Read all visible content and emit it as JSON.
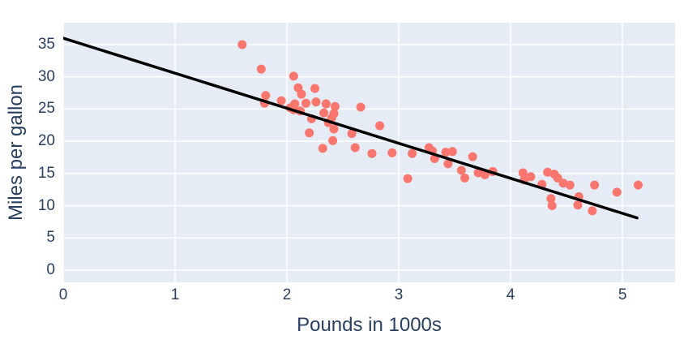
{
  "chart_data": {
    "type": "scatter",
    "title": "",
    "xlabel": "Pounds in 1000s",
    "ylabel": "Miles per gallon",
    "xlim": [
      0,
      5.47
    ],
    "ylim": [
      -1.9,
      38.4
    ],
    "xticks": [
      0,
      1,
      2,
      3,
      4,
      5
    ],
    "yticks": [
      0,
      5,
      10,
      15,
      20,
      25,
      30,
      35
    ],
    "grid": true,
    "legend_position": "none",
    "styles": {
      "plot_bg": "#e5ecf6",
      "grid_color": "#ffffff",
      "grid_width": 1.5,
      "text_color": "#2a3f5f",
      "marker_color": "#f8766d",
      "marker_radius": 5.5,
      "line_color": "#000000",
      "line_width": 3.5
    },
    "series": [
      {
        "name": "scatter-points",
        "type": "scatter",
        "points": [
          [
            1.6,
            35.0
          ],
          [
            1.77,
            31.2
          ],
          [
            1.81,
            27.1
          ],
          [
            1.8,
            25.9
          ],
          [
            1.95,
            26.3
          ],
          [
            2.06,
            30.1
          ],
          [
            2.1,
            28.3
          ],
          [
            2.13,
            27.3
          ],
          [
            2.25,
            28.2
          ],
          [
            2.03,
            25.2
          ],
          [
            2.07,
            25.8
          ],
          [
            2.17,
            25.9
          ],
          [
            2.26,
            26.1
          ],
          [
            2.06,
            24.9
          ],
          [
            2.12,
            24.7
          ],
          [
            2.22,
            23.5
          ],
          [
            2.35,
            25.8
          ],
          [
            2.43,
            25.4
          ],
          [
            2.33,
            24.4
          ],
          [
            2.42,
            24.3
          ],
          [
            2.4,
            23.6
          ],
          [
            2.37,
            22.9
          ],
          [
            2.42,
            21.9
          ],
          [
            2.2,
            21.3
          ],
          [
            2.41,
            20.1
          ],
          [
            2.32,
            18.9
          ],
          [
            2.58,
            21.2
          ],
          [
            2.66,
            25.3
          ],
          [
            2.61,
            19.0
          ],
          [
            2.76,
            18.1
          ],
          [
            2.83,
            22.4
          ],
          [
            2.94,
            18.2
          ],
          [
            3.12,
            18.1
          ],
          [
            3.08,
            14.2
          ],
          [
            3.27,
            19.0
          ],
          [
            3.3,
            18.5
          ],
          [
            3.32,
            17.3
          ],
          [
            3.42,
            18.3
          ],
          [
            3.48,
            18.4
          ],
          [
            3.44,
            16.5
          ],
          [
            3.56,
            15.5
          ],
          [
            3.59,
            14.3
          ],
          [
            3.66,
            17.6
          ],
          [
            3.71,
            15.1
          ],
          [
            3.77,
            14.8
          ],
          [
            3.84,
            15.3
          ],
          [
            4.11,
            15.1
          ],
          [
            4.12,
            14.0
          ],
          [
            4.18,
            14.5
          ],
          [
            4.28,
            13.3
          ],
          [
            4.33,
            15.2
          ],
          [
            4.39,
            14.9
          ],
          [
            4.42,
            14.3
          ],
          [
            4.47,
            13.5
          ],
          [
            4.53,
            13.2
          ],
          [
            4.36,
            11.1
          ],
          [
            4.37,
            10.0
          ],
          [
            4.61,
            11.4
          ],
          [
            4.6,
            10.1
          ],
          [
            4.73,
            9.2
          ],
          [
            4.75,
            13.2
          ],
          [
            4.95,
            12.1
          ],
          [
            5.14,
            13.2
          ]
        ]
      },
      {
        "name": "regression-line",
        "type": "line",
        "x": [
          0,
          5.13
        ],
        "y": [
          36.0,
          8.1
        ]
      }
    ]
  }
}
